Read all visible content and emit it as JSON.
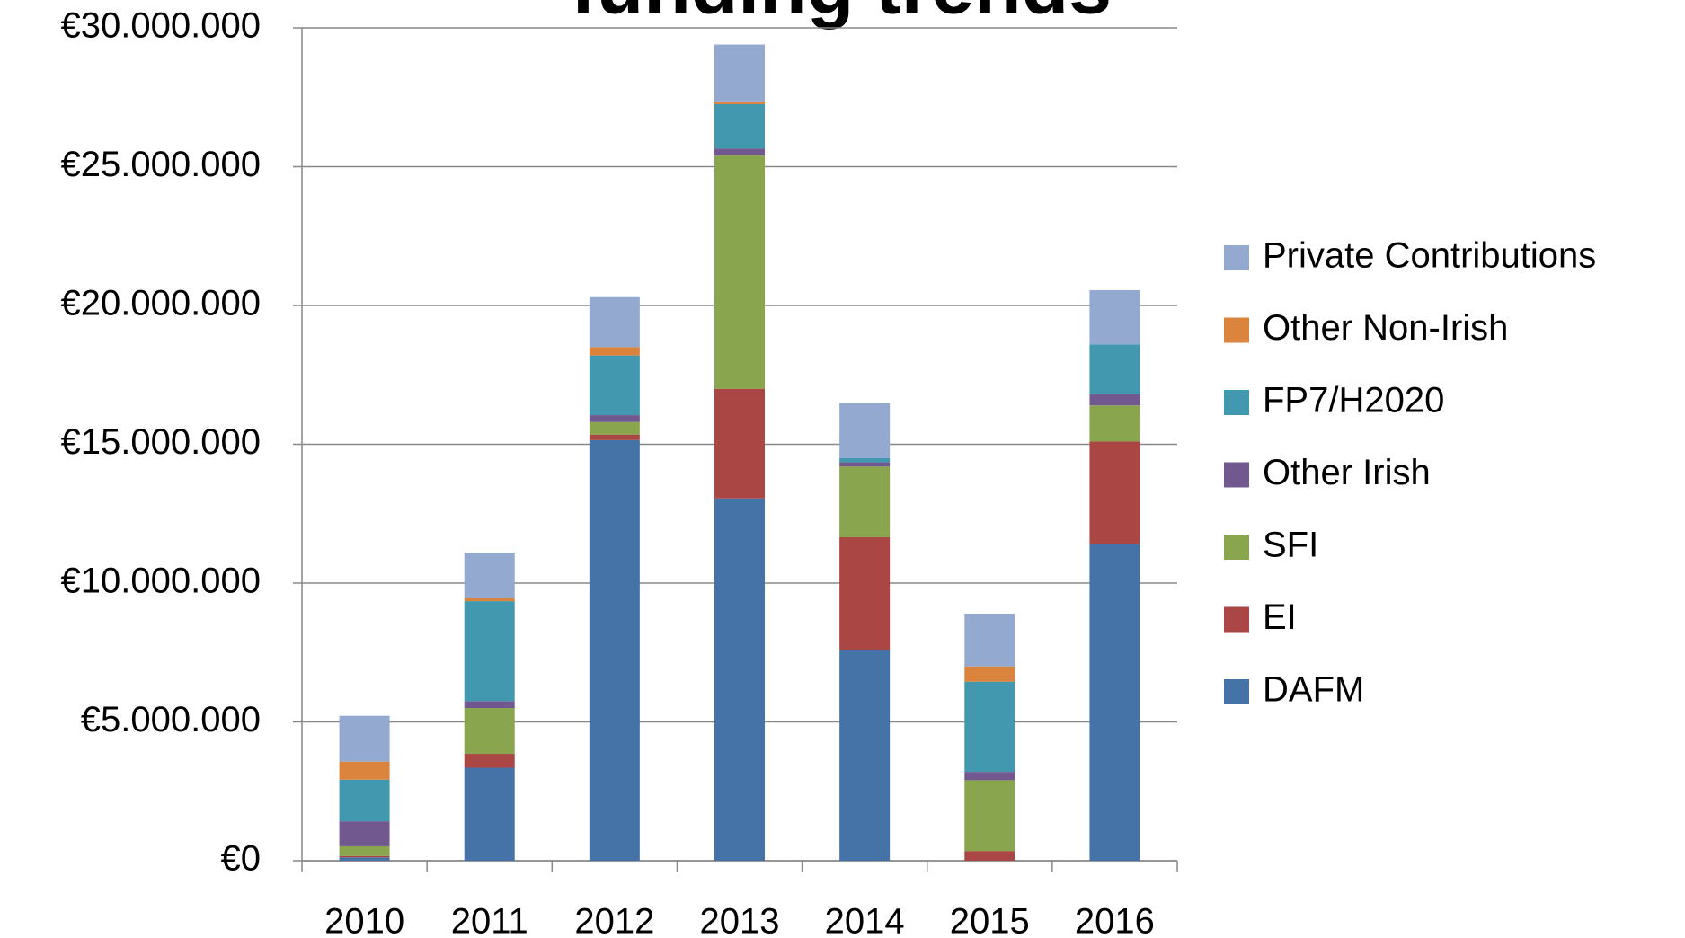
{
  "chart_data": {
    "type": "stacked_bar",
    "title": "funding trends",
    "title_color": "#3a9a2e",
    "categories": [
      "2010",
      "2011",
      "2012",
      "2013",
      "2014",
      "2015",
      "2016"
    ],
    "series": [
      {
        "name": "DAFM",
        "color": "#4572a7",
        "values": [
          0.12,
          3.35,
          15.15,
          13.05,
          7.6,
          0,
          11.4
        ]
      },
      {
        "name": "EI",
        "color": "#aa4643",
        "values": [
          0.05,
          0.5,
          0.2,
          3.95,
          4.05,
          0.35,
          3.7
        ]
      },
      {
        "name": "SFI",
        "color": "#89a54e",
        "values": [
          0.35,
          1.65,
          0.45,
          8.4,
          2.55,
          2.55,
          1.3
        ]
      },
      {
        "name": "Other Irish",
        "color": "#71588f",
        "values": [
          0.9,
          0.25,
          0.25,
          0.25,
          0.15,
          0.3,
          0.4
        ]
      },
      {
        "name": "FP7/H2020",
        "color": "#4198af",
        "values": [
          1.5,
          3.6,
          2.15,
          1.6,
          0.15,
          3.25,
          1.8
        ]
      },
      {
        "name": "Other Non-Irish",
        "color": "#db843d",
        "values": [
          0.65,
          0.1,
          0.3,
          0.1,
          0,
          0.55,
          0
        ]
      },
      {
        "name": "Private Contributions",
        "color": "#93a9cf",
        "values": [
          1.65,
          1.65,
          1.8,
          2.05,
          2.0,
          1.9,
          1.95
        ]
      }
    ],
    "ylim": [
      0,
      30
    ],
    "yticks": [
      {
        "value": 0,
        "label": "€0"
      },
      {
        "value": 5,
        "label": "€5.000.000"
      },
      {
        "value": 10,
        "label": "€10.000.000"
      },
      {
        "value": 15,
        "label": "€15.000.000"
      },
      {
        "value": 20,
        "label": "€20.000.000"
      },
      {
        "value": 25,
        "label": "€25.000.000"
      },
      {
        "value": 30,
        "label": "€30.000.000"
      }
    ],
    "grid": true,
    "legend": "right"
  }
}
